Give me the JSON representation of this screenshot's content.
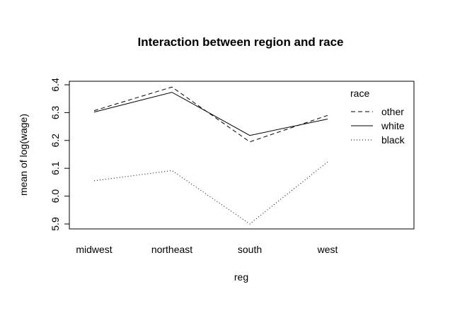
{
  "chart_data": {
    "type": "line",
    "title": "Interaction between region and race",
    "xlabel": "reg",
    "ylabel": "mean of  log(wage)",
    "categories": [
      "midwest",
      "northeast",
      "south",
      "west"
    ],
    "ylim": [
      5.9,
      6.4
    ],
    "yticks": [
      "5.9",
      "6.0",
      "6.1",
      "6.2",
      "6.3",
      "6.4"
    ],
    "legend": {
      "title": "race",
      "position": "top-right"
    },
    "series": [
      {
        "name": "other",
        "linestyle": "dashed",
        "values": [
          6.307,
          6.392,
          6.195,
          6.29
        ]
      },
      {
        "name": "white",
        "linestyle": "solid",
        "values": [
          6.302,
          6.373,
          6.218,
          6.277
        ]
      },
      {
        "name": "black",
        "linestyle": "dotted",
        "values": [
          6.055,
          6.092,
          5.9,
          6.123
        ]
      }
    ]
  }
}
